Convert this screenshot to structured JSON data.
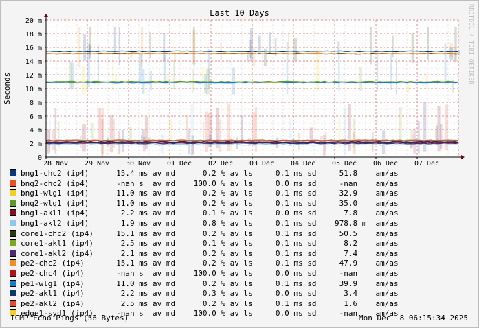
{
  "chart_data": {
    "type": "line",
    "title": "Last 10 Days",
    "ylabel": "Seconds",
    "yunit": "m",
    "ylim": [
      0,
      0.02
    ],
    "yticks": [
      {
        "value": 0,
        "label": "0"
      },
      {
        "value": 0.002,
        "label": "2 m"
      },
      {
        "value": 0.004,
        "label": "4 m"
      },
      {
        "value": 0.006,
        "label": "6 m"
      },
      {
        "value": 0.008,
        "label": "8 m"
      },
      {
        "value": 0.01,
        "label": "10 m"
      },
      {
        "value": 0.012,
        "label": "12 m"
      },
      {
        "value": 0.014,
        "label": "14 m"
      },
      {
        "value": 0.016,
        "label": "16 m"
      },
      {
        "value": 0.018,
        "label": "18 m"
      },
      {
        "value": 0.02,
        "label": "20 m"
      }
    ],
    "xlim": [
      "2025-11-28 06:15",
      "2025-12-08 06:15"
    ],
    "xticks": [
      "28 Nov",
      "29 Nov",
      "30 Nov",
      "01 Dec",
      "02 Dec",
      "03 Dec",
      "04 Dec",
      "05 Dec",
      "06 Dec",
      "07 Dec"
    ],
    "grid": true,
    "legend_position": "bottom",
    "series": [
      {
        "name": "bng1-chc2 (ip4)",
        "color": "#0a3a7a",
        "median_ms": "15.4",
        "loss": "0.2",
        "sd_ms": "0.1",
        "am_as": "51.8",
        "level": 0.0154
      },
      {
        "name": "bng2-chc2 (ip4)",
        "color": "#e8541c",
        "median_ms": "-nan",
        "loss": "100.0",
        "sd_ms": "0.0",
        "am_as": "-nan",
        "level": null
      },
      {
        "name": "bng1-wlg1 (ip4)",
        "color": "#f0d020",
        "median_ms": "11.0",
        "loss": "0.2",
        "sd_ms": "0.1",
        "am_as": "32.9",
        "level": 0.011
      },
      {
        "name": "bng2-wlg1 (ip4)",
        "color": "#5a9a2a",
        "median_ms": "11.0",
        "loss": "0.2",
        "sd_ms": "0.1",
        "am_as": "35.0",
        "level": 0.011
      },
      {
        "name": "bng1-akl1 (ip4)",
        "color": "#8a0a2a",
        "median_ms": "2.2",
        "loss": "0.1",
        "sd_ms": "0.0",
        "am_as": "7.8",
        "level": 0.0022
      },
      {
        "name": "bng1-akl2 (ip4)",
        "color": "#8ec8f0",
        "median_ms": "1.9",
        "loss": "0.8",
        "sd_ms": "0.1",
        "am_as": "978.8 m",
        "level": 0.0019
      },
      {
        "name": "core1-chc2 (ip4)",
        "color": "#2a3a10",
        "median_ms": "15.1",
        "loss": "0.2",
        "sd_ms": "0.1",
        "am_as": "50.5",
        "level": 0.0151
      },
      {
        "name": "core1-akl1 (ip4)",
        "color": "#7aa820",
        "median_ms": "2.5",
        "loss": "0.1",
        "sd_ms": "0.1",
        "am_as": "8.2",
        "level": 0.0025
      },
      {
        "name": "core1-akl2 (ip4)",
        "color": "#4a2a6a",
        "median_ms": "2.1",
        "loss": "0.2",
        "sd_ms": "0.1",
        "am_as": "7.4",
        "level": 0.0021
      },
      {
        "name": "pe2-chc2 (ip4)",
        "color": "#f09020",
        "median_ms": "15.1",
        "loss": "0.2",
        "sd_ms": "0.1",
        "am_as": "47.9",
        "level": 0.0151
      },
      {
        "name": "pe2-chc4 (ip4)",
        "color": "#b0141a",
        "median_ms": "-nan",
        "loss": "100.0",
        "sd_ms": "0.0",
        "am_as": "-nan",
        "level": null
      },
      {
        "name": "pe1-wlg1 (ip4)",
        "color": "#1a7ac8",
        "median_ms": "11.0",
        "loss": "0.2",
        "sd_ms": "0.1",
        "am_as": "39.9",
        "level": 0.011
      },
      {
        "name": "pe2-akl1 (ip4)",
        "color": "#0a3a6a",
        "median_ms": "2.2",
        "loss": "0.3",
        "sd_ms": "0.0",
        "am_as": "3.4",
        "level": 0.0022
      },
      {
        "name": "pe2-akl2 (ip4)",
        "color": "#e84a30",
        "median_ms": "2.5",
        "loss": "0.2",
        "sd_ms": "0.1",
        "am_as": "1.6",
        "level": 0.0025
      },
      {
        "name": "edge1-syd1 (ip4)",
        "color": "#f0d020",
        "median_ms": "-nan",
        "loss": "100.0",
        "sd_ms": "0.0",
        "am_as": "-nan",
        "level": null
      }
    ]
  },
  "legend_units": {
    "ms": "ms",
    "av_md": "av md",
    "pct": "%",
    "av_ls": "av ls",
    "sd": "sd",
    "amas": "am/as",
    "nan_unit": "s"
  },
  "footer": {
    "left": "ICMP Echo Pings (56 Bytes)",
    "right": "Mon Dec  8 06:15:34 2025"
  },
  "watermark": "RRDTOOL / TOBI OETIKER"
}
